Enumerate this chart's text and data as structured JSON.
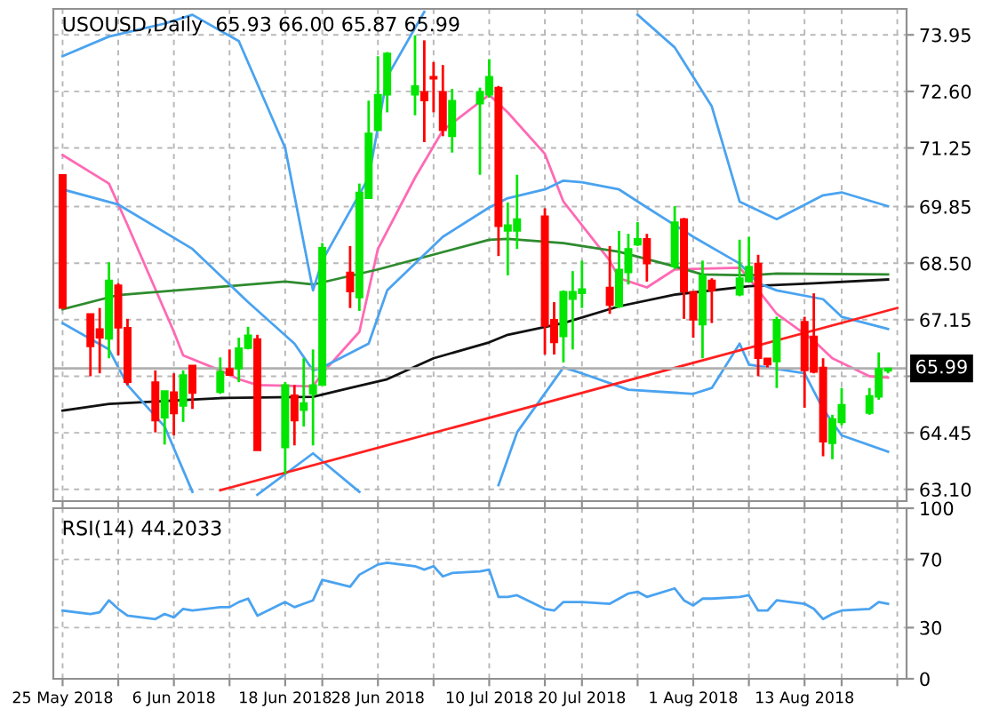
{
  "chart_data": [
    {
      "type": "candlestick",
      "title": "USOUSD,Daily  65.93 66.00 65.87 65.99",
      "x": [
        "2018-05-25",
        "2018-05-28",
        "2018-05-29",
        "2018-05-30",
        "2018-05-31",
        "2018-06-01",
        "2018-06-04",
        "2018-06-05",
        "2018-06-06",
        "2018-06-07",
        "2018-06-08",
        "2018-06-11",
        "2018-06-12",
        "2018-06-13",
        "2018-06-14",
        "2018-06-15",
        "2018-06-18",
        "2018-06-19",
        "2018-06-20",
        "2018-06-21",
        "2018-06-22",
        "2018-06-25",
        "2018-06-26",
        "2018-06-27",
        "2018-06-28",
        "2018-06-29",
        "2018-07-02",
        "2018-07-03",
        "2018-07-04",
        "2018-07-05",
        "2018-07-06",
        "2018-07-09",
        "2018-07-10",
        "2018-07-11",
        "2018-07-12",
        "2018-07-13",
        "2018-07-16",
        "2018-07-17",
        "2018-07-18",
        "2018-07-19",
        "2018-07-20",
        "2018-07-23",
        "2018-07-24",
        "2018-07-25",
        "2018-07-26",
        "2018-07-27",
        "2018-07-30",
        "2018-07-31",
        "2018-08-01",
        "2018-08-02",
        "2018-08-03",
        "2018-08-06",
        "2018-08-07",
        "2018-08-08",
        "2018-08-09",
        "2018-08-10",
        "2018-08-13",
        "2018-08-14",
        "2018-08-15",
        "2018-08-16",
        "2018-08-17",
        "2018-08-20",
        "2018-08-21",
        "2018-08-22"
      ],
      "ohlc": [
        [
          70.61,
          70.61,
          67.43,
          67.43
        ],
        [
          67.29,
          67.29,
          65.8,
          66.51
        ],
        [
          66.93,
          67.43,
          65.87,
          66.72
        ],
        [
          66.69,
          68.52,
          66.23,
          68.09
        ],
        [
          67.97,
          68.02,
          66.3,
          66.96
        ],
        [
          66.96,
          67.17,
          65.59,
          65.66
        ],
        [
          65.66,
          65.94,
          64.46,
          64.74
        ],
        [
          64.81,
          65.45,
          64.17,
          65.45
        ],
        [
          65.42,
          65.87,
          64.39,
          64.91
        ],
        [
          65.09,
          65.94,
          64.71,
          65.83
        ],
        [
          66.06,
          66.06,
          65.02,
          65.4
        ],
        [
          65.42,
          66.25,
          65.38,
          65.91
        ],
        [
          65.98,
          66.44,
          65.83,
          65.83
        ],
        [
          65.98,
          66.72,
          65.66,
          66.47
        ],
        [
          66.47,
          66.98,
          66.44,
          66.78
        ],
        [
          66.69,
          66.79,
          64.03,
          64.03
        ],
        [
          64.1,
          65.66,
          63.47,
          65.59
        ],
        [
          65.35,
          65.59,
          64.15,
          64.74
        ],
        [
          64.99,
          66.23,
          64.6,
          65.16
        ],
        [
          65.38,
          66.44,
          64.15,
          65.59
        ],
        [
          65.59,
          68.98,
          65.59,
          68.87
        ],
        [
          68.28,
          68.91,
          67.43,
          67.82
        ],
        [
          67.68,
          70.4,
          67.36,
          70.19
        ],
        [
          70.05,
          72.38,
          70.05,
          71.6
        ],
        [
          71.67,
          73.44,
          71.67,
          72.52
        ],
        [
          72.52,
          73.54,
          72.1,
          73.51
        ],
        [
          72.52,
          73.94,
          72.03,
          72.73
        ],
        [
          72.59,
          73.82,
          71.39,
          72.38
        ],
        [
          72.95,
          73.3,
          72.1,
          72.9
        ],
        [
          72.59,
          73.23,
          71.53,
          71.67
        ],
        [
          71.53,
          72.66,
          71.14,
          72.38
        ],
        [
          72.31,
          72.69,
          70.61,
          72.59
        ],
        [
          72.52,
          73.37,
          72.45,
          72.95
        ],
        [
          72.69,
          72.73,
          68.67,
          69.38
        ],
        [
          69.27,
          69.95,
          68.21,
          69.41
        ],
        [
          69.27,
          70.61,
          68.84,
          69.55
        ],
        [
          69.62,
          69.81,
          66.32,
          67.0
        ],
        [
          67.15,
          67.57,
          66.32,
          66.61
        ],
        [
          66.75,
          67.85,
          66.13,
          67.82
        ],
        [
          67.64,
          68.31,
          66.44,
          67.82
        ],
        [
          67.78,
          68.56,
          67.43,
          67.88
        ],
        [
          67.92,
          68.91,
          67.29,
          67.5
        ],
        [
          67.46,
          69.27,
          67.43,
          68.35
        ],
        [
          68.28,
          69.2,
          67.99,
          68.84
        ],
        [
          68.94,
          69.48,
          68.91,
          69.08
        ],
        [
          69.08,
          69.2,
          68.06,
          68.49
        ],
        [
          68.42,
          69.86,
          68.35,
          69.48
        ],
        [
          69.55,
          69.58,
          67.17,
          67.82
        ],
        [
          67.82,
          67.82,
          66.72,
          67.15
        ],
        [
          67.03,
          68.56,
          66.23,
          68.21
        ],
        [
          68.09,
          68.14,
          67.07,
          67.85
        ],
        [
          67.75,
          69.06,
          67.71,
          68.14
        ],
        [
          68.06,
          69.13,
          68.06,
          68.42
        ],
        [
          68.49,
          68.7,
          65.8,
          66.23
        ],
        [
          66.23,
          66.23,
          66.01,
          66.08
        ],
        [
          66.15,
          67.22,
          65.52,
          67.15
        ],
        [
          67.1,
          67.22,
          65.05,
          65.94
        ],
        [
          66.75,
          67.78,
          65.87,
          65.9
        ],
        [
          66.01,
          66.23,
          63.89,
          64.24
        ],
        [
          64.2,
          64.88,
          63.82,
          64.78
        ],
        [
          64.7,
          65.52,
          64.63,
          65.12
        ],
        [
          64.92,
          65.52,
          64.88,
          65.33
        ],
        [
          65.31,
          66.37,
          65.24,
          65.98
        ],
        [
          65.93,
          66.0,
          65.87,
          65.99
        ]
      ],
      "colors": [
        "#ff0000",
        "#ff0000",
        "#ff0000",
        "#00e600",
        "#ff0000",
        "#ff0000",
        "#ff0000",
        "#00e600",
        "#ff0000",
        "#00e600",
        "#ff0000",
        "#00e600",
        "#ff0000",
        "#00e600",
        "#00e600",
        "#ff0000",
        "#00e600",
        "#ff0000",
        "#00e600",
        "#00e600",
        "#00e600",
        "#ff0000",
        "#00e600",
        "#00e600",
        "#00e600",
        "#00e600",
        "#00e600",
        "#ff0000",
        "#ff0000",
        "#ff0000",
        "#00e600",
        "#00e600",
        "#00e600",
        "#ff0000",
        "#00e600",
        "#00e600",
        "#ff0000",
        "#ff0000",
        "#00e600",
        "#00e600",
        "#00e600",
        "#ff0000",
        "#00e600",
        "#00e600",
        "#00e600",
        "#ff0000",
        "#00e600",
        "#ff0000",
        "#ff0000",
        "#00e600",
        "#ff0000",
        "#00e600",
        "#00e600",
        "#ff0000",
        "#ff0000",
        "#00e600",
        "#ff0000",
        "#ff0000",
        "#ff0000",
        "#00e600",
        "#00e600",
        "#00e600",
        "#00e600",
        "#00e600"
      ],
      "series": [
        {
          "type": "line",
          "color": "#ff69b4",
          "x": [
            "2018-05-25",
            "2018-05-30",
            "2018-06-01",
            "2018-06-06",
            "2018-06-07",
            "2018-06-11",
            "2018-06-13",
            "2018-06-15",
            "2018-06-21",
            "2018-06-22",
            "2018-06-26",
            "2018-06-28",
            "2018-07-02",
            "2018-07-05",
            "2018-07-10",
            "2018-07-12",
            "2018-07-16",
            "2018-07-18",
            "2018-07-23",
            "2018-07-24",
            "2018-07-27",
            "2018-07-30",
            "2018-08-06",
            "2018-08-07",
            "2018-08-10",
            "2018-08-14",
            "2018-08-16",
            "2018-08-20",
            "2018-08-22"
          ],
          "values": [
            71.08,
            70.4,
            69.41,
            66.86,
            66.3,
            65.94,
            65.73,
            65.59,
            65.56,
            65.87,
            66.86,
            68.84,
            70.54,
            71.67,
            72.52,
            72.1,
            71.11,
            69.97,
            68.56,
            68.14,
            67.92,
            68.35,
            68.39,
            68.14,
            67.29,
            66.65,
            66.23,
            65.8,
            65.77
          ]
        },
        {
          "type": "line",
          "color": "#111111",
          "x": [
            "2018-05-25",
            "2018-05-30",
            "2018-06-11",
            "2018-06-21",
            "2018-06-25",
            "2018-06-29",
            "2018-07-04",
            "2018-07-10",
            "2018-07-12",
            "2018-07-18",
            "2018-07-24",
            "2018-07-30",
            "2018-08-07",
            "2018-08-14",
            "2018-08-22"
          ],
          "values": [
            64.98,
            65.14,
            65.28,
            65.31,
            65.52,
            65.73,
            66.23,
            66.61,
            66.79,
            67.07,
            67.47,
            67.75,
            67.95,
            68.02,
            68.11
          ]
        },
        {
          "type": "line",
          "color": "#2e8b2e",
          "x": [
            "2018-05-25",
            "2018-05-31",
            "2018-06-18",
            "2018-06-21",
            "2018-06-28",
            "2018-07-10",
            "2018-07-12",
            "2018-07-18",
            "2018-07-24",
            "2018-07-30",
            "2018-08-02",
            "2018-08-07",
            "2018-08-10",
            "2018-08-22"
          ],
          "values": [
            67.4,
            67.74,
            68.06,
            67.99,
            68.35,
            69.06,
            69.08,
            68.98,
            68.77,
            68.42,
            68.23,
            68.21,
            68.25,
            68.23
          ]
        },
        {
          "type": "line",
          "color": "#4aa3f0",
          "x": [
            "2018-05-25",
            "2018-05-30",
            "2018-06-05",
            "2018-06-08",
            "2018-06-13",
            "2018-06-18",
            "2018-06-21",
            "2018-06-22",
            "2018-06-27",
            "2018-06-29",
            "2018-07-03",
            "2018-07-04",
            "2018-07-26",
            "2018-07-30",
            "2018-08-03",
            "2018-08-06",
            "2018-08-10",
            "2018-08-15",
            "2018-08-17",
            "2018-08-22"
          ],
          "values": [
            73.44,
            73.91,
            74.22,
            74.43,
            73.8,
            71.25,
            67.85,
            68.56,
            70.54,
            72.95,
            74.5,
            null,
            74.43,
            73.65,
            72.24,
            69.97,
            69.55,
            70.12,
            70.19,
            69.86
          ]
        },
        {
          "type": "line",
          "color": "#4aa3f0",
          "x": [
            "2018-05-25",
            "2018-05-31",
            "2018-06-08",
            "2018-06-14",
            "2018-06-19",
            "2018-06-21",
            "2018-06-22",
            "2018-06-27",
            "2018-06-29",
            "2018-07-05",
            "2018-07-10",
            "2018-07-12",
            "2018-07-16",
            "2018-07-18",
            "2018-07-20",
            "2018-07-24",
            "2018-07-27",
            "2018-08-01",
            "2018-08-06",
            "2018-08-08",
            "2018-08-10",
            "2018-08-15",
            "2018-08-17",
            "2018-08-22"
          ],
          "values": [
            70.26,
            69.9,
            68.84,
            67.57,
            66.58,
            65.94,
            66.01,
            66.58,
            67.85,
            69.13,
            69.83,
            70.05,
            70.26,
            70.47,
            70.43,
            70.26,
            69.83,
            69.13,
            68.49,
            68.02,
            67.85,
            67.64,
            67.22,
            66.93
          ]
        },
        {
          "type": "line",
          "color": "#4aa3f0",
          "x": [
            "2018-05-25",
            "2018-05-30",
            "2018-06-01",
            "2018-06-05",
            "2018-06-08",
            "2018-06-11",
            "2018-06-15",
            "2018-06-21",
            "2018-06-26",
            "2018-06-27",
            "2018-07-10",
            "2018-07-11",
            "2018-07-13",
            "2018-07-18",
            "2018-07-20",
            "2018-07-25",
            "2018-08-01",
            "2018-08-03",
            "2018-08-06",
            "2018-08-07",
            "2018-08-09",
            "2018-08-13",
            "2018-08-15",
            "2018-08-17",
            "2018-08-22"
          ],
          "values": [
            67.07,
            66.44,
            65.59,
            64.6,
            63.04,
            null,
            62.97,
            63.96,
            63.04,
            null,
            null,
            63.2,
            64.46,
            66.01,
            65.87,
            65.48,
            65.38,
            65.52,
            66.58,
            66.08,
            66.01,
            65.87,
            65.02,
            64.39,
            64.0
          ]
        },
        {
          "type": "line",
          "color": "#ff2020",
          "x": [
            "2018-06-11",
            "2018-08-23"
          ],
          "values": [
            63.08,
            67.43
          ]
        }
      ],
      "ref_lines": [
        {
          "axis": "y",
          "value": 65.99,
          "label": "65.99",
          "color": "#b0b0b0"
        }
      ],
      "xlim": [
        "2018-05-24",
        "2018-08-24"
      ],
      "xticks": [
        {
          "value": "2018-05-25",
          "label": null
        },
        {
          "value": "2018-05-31",
          "label": null
        },
        {
          "value": "2018-06-06",
          "label": null
        },
        {
          "value": "2018-06-12",
          "label": null
        },
        {
          "value": "2018-06-18",
          "label": null
        },
        {
          "value": "2018-06-22",
          "label": null
        },
        {
          "value": "2018-06-28",
          "label": null
        },
        {
          "value": "2018-07-04",
          "label": null
        },
        {
          "value": "2018-07-10",
          "label": null
        },
        {
          "value": "2018-07-16",
          "label": null
        },
        {
          "value": "2018-07-20",
          "label": null
        },
        {
          "value": "2018-07-26",
          "label": null
        },
        {
          "value": "2018-08-01",
          "label": null
        },
        {
          "value": "2018-08-07",
          "label": null
        },
        {
          "value": "2018-08-13",
          "label": null
        },
        {
          "value": "2018-08-17",
          "label": null
        },
        {
          "value": "2018-08-23",
          "label": null
        }
      ],
      "ylim": [
        62.82,
        74.57
      ],
      "yticks": [
        {
          "value": 63.1,
          "label": "63.10"
        },
        64.45,
        {
          "value": 65.8,
          "label": null
        },
        67.15,
        {
          "value": 68.5,
          "label": "68.50"
        },
        69.85,
        71.25,
        {
          "value": 72.6,
          "label": "72.60"
        },
        73.95
      ],
      "grid": true,
      "tick_labels": "y"
    },
    {
      "type": "line",
      "title": "RSI(14) 44.2033",
      "x": [
        "2018-05-25",
        "2018-05-28",
        "2018-05-29",
        "2018-05-30",
        "2018-05-31",
        "2018-06-01",
        "2018-06-04",
        "2018-06-05",
        "2018-06-06",
        "2018-06-07",
        "2018-06-08",
        "2018-06-11",
        "2018-06-12",
        "2018-06-13",
        "2018-06-14",
        "2018-06-15",
        "2018-06-18",
        "2018-06-19",
        "2018-06-20",
        "2018-06-21",
        "2018-06-22",
        "2018-06-25",
        "2018-06-26",
        "2018-06-27",
        "2018-06-28",
        "2018-06-29",
        "2018-07-02",
        "2018-07-03",
        "2018-07-04",
        "2018-07-05",
        "2018-07-06",
        "2018-07-09",
        "2018-07-10",
        "2018-07-11",
        "2018-07-12",
        "2018-07-13",
        "2018-07-16",
        "2018-07-17",
        "2018-07-18",
        "2018-07-19",
        "2018-07-20",
        "2018-07-23",
        "2018-07-24",
        "2018-07-25",
        "2018-07-26",
        "2018-07-27",
        "2018-07-30",
        "2018-07-31",
        "2018-08-01",
        "2018-08-02",
        "2018-08-03",
        "2018-08-06",
        "2018-08-07",
        "2018-08-08",
        "2018-08-09",
        "2018-08-10",
        "2018-08-13",
        "2018-08-14",
        "2018-08-15",
        "2018-08-16",
        "2018-08-17",
        "2018-08-20",
        "2018-08-21",
        "2018-08-22"
      ],
      "series": [
        {
          "color": "#4aa3f0",
          "values": [
            40,
            38,
            39,
            46,
            41,
            37,
            35,
            38,
            36,
            41,
            40,
            42,
            42,
            45,
            47,
            37,
            45,
            42,
            44,
            46,
            58,
            54,
            61,
            64,
            67,
            68,
            66,
            64,
            66,
            60,
            62,
            63,
            64,
            48,
            48,
            49,
            41,
            40,
            45,
            45,
            45,
            44,
            47,
            50,
            51,
            48,
            53,
            46,
            43,
            47,
            47,
            48,
            49,
            40,
            40,
            46,
            44,
            41,
            35,
            38,
            40,
            41,
            45,
            44
          ]
        }
      ],
      "xlim": [
        "2018-05-24",
        "2018-08-24"
      ],
      "xticks": [
        {
          "value": "2018-05-25",
          "label": "25 May 2018"
        },
        {
          "value": "2018-05-31",
          "label": null
        },
        {
          "value": "2018-06-06",
          "label": "6 Jun 2018"
        },
        {
          "value": "2018-06-12",
          "label": null
        },
        {
          "value": "2018-06-18",
          "label": "18 Jun 2018"
        },
        {
          "value": "2018-06-22",
          "label": null
        },
        {
          "value": "2018-06-28",
          "label": "28 Jun 2018"
        },
        {
          "value": "2018-07-04",
          "label": null
        },
        {
          "value": "2018-07-10",
          "label": "10 Jul 2018"
        },
        {
          "value": "2018-07-16",
          "label": null
        },
        {
          "value": "2018-07-20",
          "label": "20 Jul 2018"
        },
        {
          "value": "2018-07-26",
          "label": null
        },
        {
          "value": "2018-08-01",
          "label": "1 Aug 2018"
        },
        {
          "value": "2018-08-07",
          "label": null
        },
        {
          "value": "2018-08-13",
          "label": "13 Aug 2018"
        },
        {
          "value": "2018-08-17",
          "label": null
        },
        {
          "value": "2018-08-23",
          "label": null
        }
      ],
      "ylim": [
        0,
        100
      ],
      "yticks": [
        0,
        30,
        70,
        100
      ],
      "grid": true
    }
  ]
}
